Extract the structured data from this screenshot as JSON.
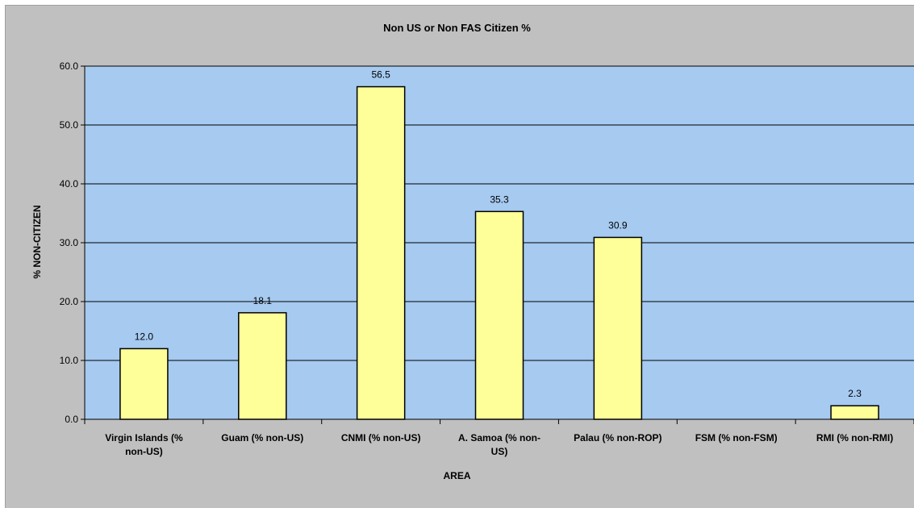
{
  "chart_data": {
    "type": "bar",
    "title": "Non US or Non FAS Citizen %",
    "xlabel": "AREA",
    "ylabel": "% NON-CITIZEN",
    "categories": [
      "Virgin Islands (% non-US)",
      "Guam (% non-US)",
      "CNMI (% non-US)",
      "A. Samoa (% non-US)",
      "Palau (% non-ROP)",
      "FSM (% non-FSM)",
      "RMI (% non-RMI)"
    ],
    "category_display": [
      [
        "Virgin Islands (%",
        "non-US)"
      ],
      [
        "Guam (% non-US)"
      ],
      [
        "CNMI (% non-US)"
      ],
      [
        "A. Samoa (% non-",
        "US)"
      ],
      [
        "Palau (% non-ROP)"
      ],
      [
        "FSM (% non-FSM)"
      ],
      [
        "RMI (% non-RMI)"
      ]
    ],
    "values": [
      12.0,
      18.1,
      56.5,
      35.3,
      30.9,
      null,
      2.3
    ],
    "data_labels": [
      "12.0",
      "18.1",
      "56.5",
      "35.3",
      "30.9",
      "",
      "2.3"
    ],
    "ylim": [
      0,
      60
    ],
    "yticks": [
      "0.0",
      "10.0",
      "20.0",
      "30.0",
      "40.0",
      "50.0",
      "60.0"
    ],
    "grid": true,
    "legend": false,
    "colors": {
      "bar_fill": "#ffff99",
      "bar_stroke": "#000000",
      "plot_bg": "#a6caf0",
      "chart_bg": "#c0c0c0",
      "gridline": "#000000"
    }
  }
}
